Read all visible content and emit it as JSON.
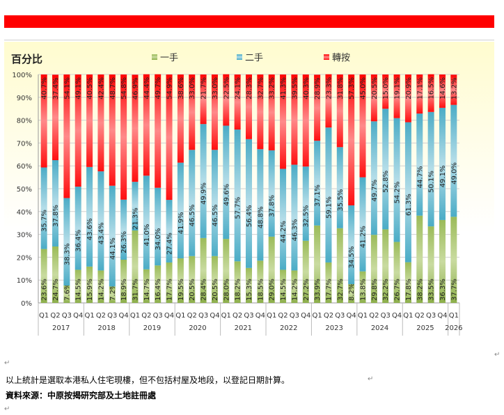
{
  "chart_data": {
    "type": "bar",
    "stacked": true,
    "percent": true,
    "title": "百分比",
    "ylim": [
      0,
      100
    ],
    "yticks": [
      "0%",
      "10%",
      "20%",
      "30%",
      "40%",
      "50%",
      "60%",
      "70%",
      "80%",
      "90%",
      "100%"
    ],
    "grid": true,
    "legend_position": "top",
    "categories": [
      "Q1",
      "Q2",
      "Q3",
      "Q4",
      "Q1",
      "Q2",
      "Q3",
      "Q4",
      "Q1",
      "Q2",
      "Q3",
      "Q4",
      "Q1",
      "Q2",
      "Q3",
      "Q4",
      "Q1",
      "Q2",
      "Q3",
      "Q4",
      "Q1",
      "Q2",
      "Q3",
      "Q4",
      "Q1",
      "Q2",
      "Q3",
      "Q4",
      "Q1",
      "Q2",
      "Q3",
      "Q4",
      "Q1",
      "Q2",
      "Q3",
      "Q4",
      "Q1"
    ],
    "years": [
      {
        "label": "2017",
        "count": 4
      },
      {
        "label": "2018",
        "count": 4
      },
      {
        "label": "2019",
        "count": 4
      },
      {
        "label": "2020",
        "count": 4
      },
      {
        "label": "2021",
        "count": 4
      },
      {
        "label": "2022",
        "count": 4
      },
      {
        "label": "2023",
        "count": 4
      },
      {
        "label": "2024",
        "count": 4
      },
      {
        "label": "2025",
        "count": 4
      },
      {
        "label": "2026",
        "count": 1
      }
    ],
    "series": [
      {
        "name": "一手",
        "color": "#9bbb59",
        "values": [
          23.6,
          24.7,
          7.6,
          14.5,
          15.9,
          14.2,
          7.2,
          18.9,
          31.7,
          14.7,
          16.4,
          17.7,
          19.5,
          20.5,
          28.4,
          20.5,
          28.0,
          18.2,
          15.3,
          18.5,
          29.0,
          14.5,
          14.2,
          27.2,
          33.9,
          17.7,
          32.7,
          8.2,
          13.8,
          29.8,
          32.2,
          26.7,
          17.8,
          38.2,
          33.5,
          36.3,
          37.7
        ]
      },
      {
        "name": "二手",
        "color": "#4bacc6",
        "values": [
          35.7,
          37.8,
          38.3,
          36.4,
          43.6,
          43.4,
          44.1,
          26.3,
          21.3,
          41.0,
          34.0,
          27.4,
          41.9,
          46.5,
          49.9,
          46.5,
          49.6,
          57.7,
          56.4,
          48.8,
          37.8,
          44.2,
          46.3,
          32.5,
          37.1,
          59.1,
          35.5,
          34.5,
          41.2,
          49.7,
          52.8,
          54.2,
          61.3,
          44.7,
          50.1,
          49.1,
          49.0
        ]
      },
      {
        "name": "轉按",
        "color": "#ff0000",
        "values": [
          40.7,
          37.4,
          54.1,
          49.1,
          40.5,
          42.4,
          48.7,
          54.8,
          46.9,
          44.4,
          49.7,
          54.9,
          38.6,
          33.0,
          21.7,
          33.0,
          22.5,
          24.1,
          28.3,
          32.7,
          33.2,
          41.3,
          39.5,
          40.3,
          28.9,
          23.3,
          31.8,
          57.3,
          45.0,
          20.5,
          15.0,
          19.1,
          20.9,
          17.1,
          16.5,
          14.6,
          13.2
        ]
      }
    ]
  },
  "notes": {
    "line1": "以上統計是選取本港私人住宅現樓，但不包括村屋及地段，以登記日期計算。",
    "line2": "資料來源：中原按揭研究部及土地註冊處"
  }
}
